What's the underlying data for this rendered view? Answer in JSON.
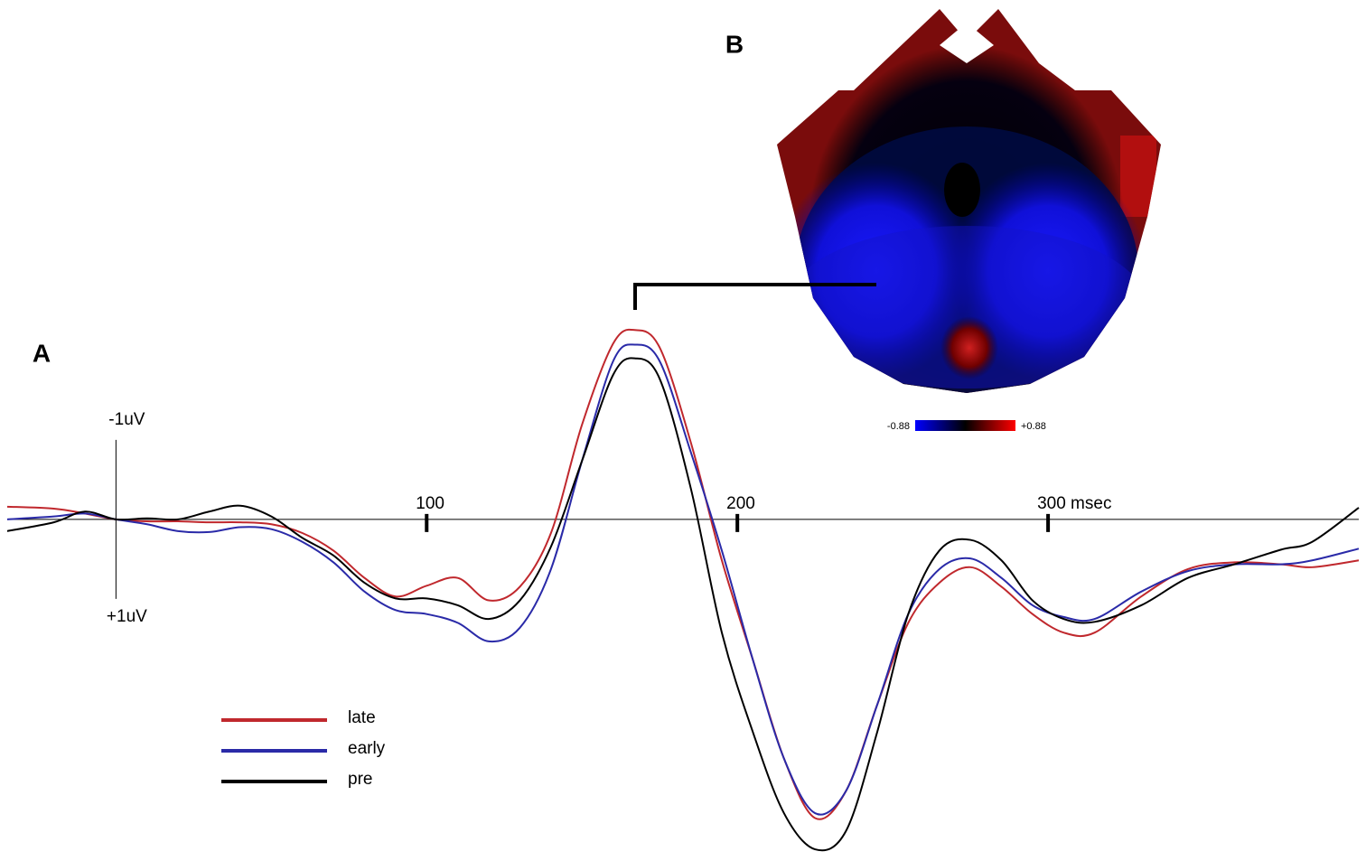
{
  "chart_data": {
    "type": "line",
    "panel_labels": [
      "A",
      "B"
    ],
    "x": [
      -35,
      -20,
      -10,
      0,
      10,
      20,
      30,
      40,
      50,
      60,
      70,
      80,
      90,
      100,
      110,
      120,
      130,
      140,
      150,
      160,
      167,
      175,
      185,
      195,
      205,
      215,
      225,
      235,
      245,
      255,
      265,
      275,
      285,
      295,
      305,
      315,
      330,
      345,
      360,
      375,
      385,
      400
    ],
    "series": [
      {
        "name": "late",
        "color": "#c0282d",
        "values": [
          -0.13,
          -0.11,
          -0.06,
          0,
          0.02,
          0.02,
          0.03,
          0.03,
          0.05,
          0.14,
          0.32,
          0.6,
          0.79,
          0.68,
          0.6,
          0.83,
          0.69,
          0.14,
          -0.97,
          -1.8,
          -1.94,
          -1.76,
          -0.79,
          0.42,
          1.44,
          2.45,
          3.06,
          2.78,
          1.9,
          1.06,
          0.65,
          0.49,
          0.69,
          0.97,
          1.16,
          1.16,
          0.79,
          0.51,
          0.44,
          0.46,
          0.49,
          0.42
        ]
      },
      {
        "name": "early",
        "color": "#2a2aa8",
        "values": [
          0,
          -0.03,
          -0.06,
          0,
          0.05,
          0.12,
          0.13,
          0.08,
          0.1,
          0.23,
          0.44,
          0.74,
          0.93,
          0.97,
          1.06,
          1.25,
          1.11,
          0.51,
          -0.6,
          -1.62,
          -1.79,
          -1.62,
          -0.69,
          0.32,
          1.44,
          2.45,
          3.01,
          2.78,
          1.9,
          0.97,
          0.51,
          0.4,
          0.6,
          0.88,
          1.0,
          1.02,
          0.74,
          0.53,
          0.46,
          0.46,
          0.42,
          0.3
        ]
      },
      {
        "name": "pre",
        "color": "#000000",
        "values": [
          0.12,
          0.03,
          -0.08,
          0,
          -0.01,
          0,
          -0.08,
          -0.14,
          -0.03,
          0.19,
          0.37,
          0.65,
          0.81,
          0.81,
          0.88,
          1.02,
          0.83,
          0.28,
          -0.6,
          -1.48,
          -1.65,
          -1.44,
          -0.32,
          1.16,
          2.18,
          3.01,
          3.38,
          3.19,
          2.18,
          0.97,
          0.32,
          0.21,
          0.42,
          0.83,
          1.02,
          1.05,
          0.88,
          0.6,
          0.46,
          0.31,
          0.23,
          -0.12
        ]
      }
    ],
    "xlim": [
      -35,
      400
    ],
    "xticks": [
      100,
      200,
      {
        "value": 300,
        "label": "300 msec"
      }
    ],
    "ylim": [
      -2.1,
      3.5
    ],
    "y_inverted": true,
    "yticks": [
      {
        "value": -1,
        "label": "-1uV"
      },
      {
        "value": 1,
        "label": "+1uV"
      }
    ],
    "colorbar_labels": [
      "-0.88",
      "+0.88"
    ]
  }
}
